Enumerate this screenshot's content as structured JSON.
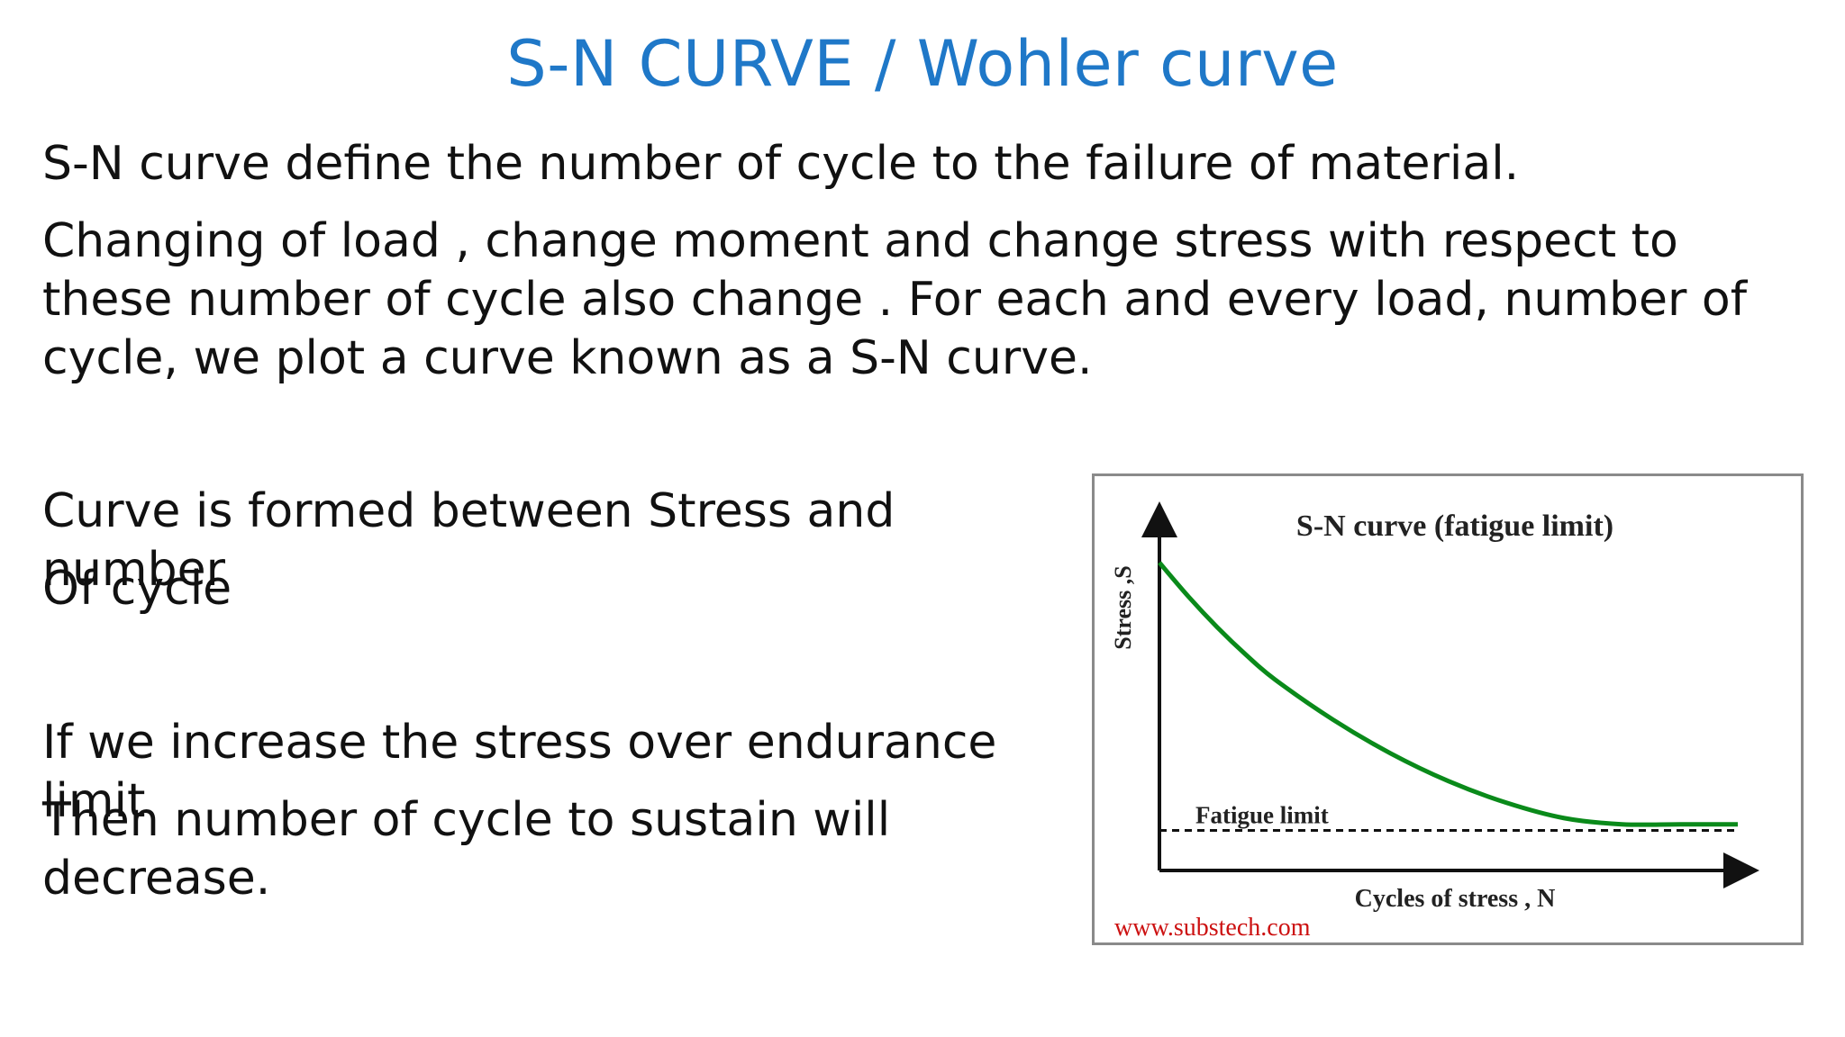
{
  "slide": {
    "title": "S-N CURVE / Wohler curve",
    "paragraphs": [
      "S-N curve define the number of cycle to the failure of material.",
      "Changing of load , change moment and change stress with respect to these number of cycle also change . For each  and every load, number of cycle, we plot a curve known as a S-N curve.",
      "Curve is formed between Stress and number",
      "Of cycle",
      "If we increase the stress over endurance limit",
      "Then number of cycle to sustain will decrease."
    ]
  },
  "chart_data": {
    "type": "line",
    "title": "S-N curve (fatigue limit)",
    "xlabel": "Cycles of stress ,  N",
    "ylabel": "Stress ,S",
    "x": [
      0,
      0.05,
      0.1,
      0.15,
      0.2,
      0.3,
      0.4,
      0.5,
      0.6,
      0.7,
      0.8,
      0.9,
      1.0
    ],
    "series": [
      {
        "values": [
          1.0,
          0.89,
          0.79,
          0.7,
          0.62,
          0.49,
          0.38,
          0.29,
          0.22,
          0.17,
          0.15,
          0.15,
          0.15
        ]
      }
    ],
    "reference_line": {
      "label": "Fatigue limit",
      "value": 0.13,
      "style": "dashed"
    },
    "watermark": "www.substech.com",
    "colors": {
      "curve": "#0a8a1a",
      "axis": "#111111",
      "watermark": "#cc1111"
    },
    "grid": false,
    "legend": "none"
  }
}
